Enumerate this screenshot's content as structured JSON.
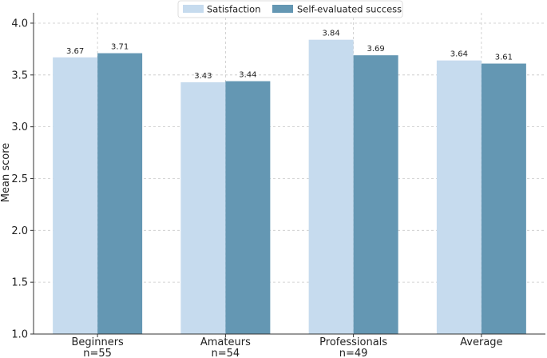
{
  "chart_data": {
    "type": "bar",
    "title": "",
    "xlabel": "",
    "ylabel": "Mean score",
    "ylim": [
      1.0,
      4.1
    ],
    "yticks": [
      "1.0",
      "1.5",
      "2.0",
      "2.5",
      "3.0",
      "3.5",
      "4.0"
    ],
    "grid": true,
    "legend_position": "top-center",
    "categories": [
      {
        "name": "Beginners",
        "sub": "n=55"
      },
      {
        "name": "Amateurs",
        "sub": "n=54"
      },
      {
        "name": "Professionals",
        "sub": "n=49"
      },
      {
        "name": "Average",
        "sub": ""
      }
    ],
    "series": [
      {
        "name": "Satisfaction",
        "color": "#c6dbee",
        "values": [
          3.67,
          3.43,
          3.84,
          3.64
        ]
      },
      {
        "name": "Self-evaluated success",
        "color": "#6497b3",
        "values": [
          3.71,
          3.44,
          3.69,
          3.61
        ]
      }
    ]
  }
}
